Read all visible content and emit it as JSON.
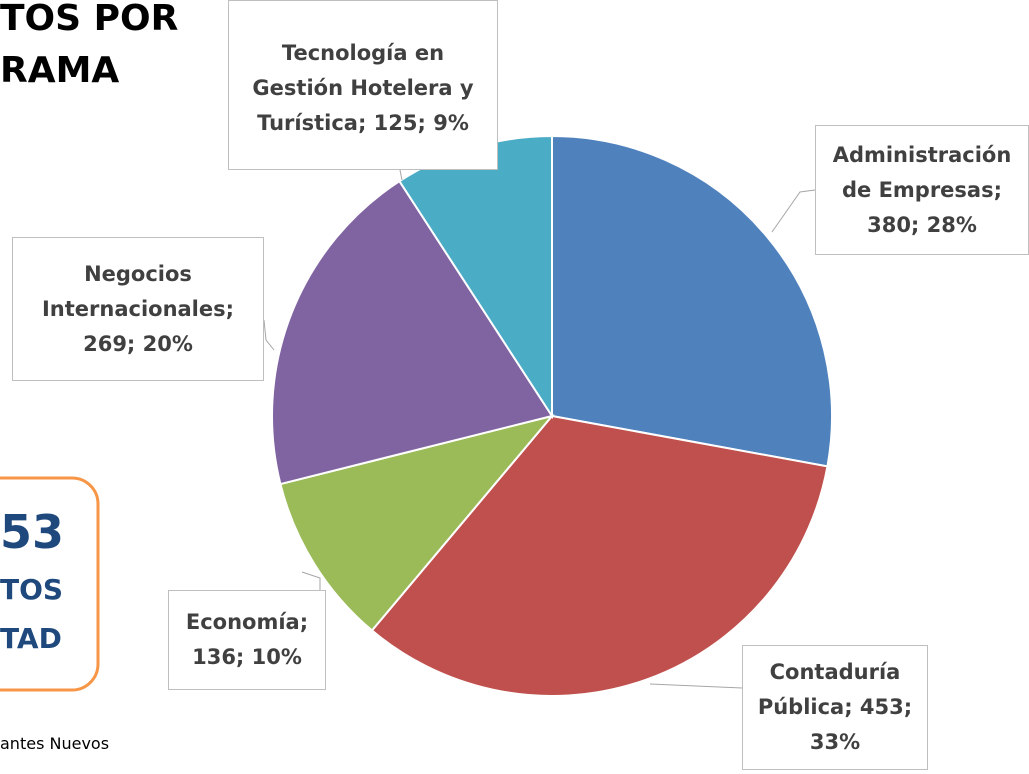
{
  "chart_data": {
    "type": "pie",
    "title_lines": [
      "TOS POR",
      "RAMA"
    ],
    "values": [
      380,
      453,
      136,
      269,
      125
    ],
    "value_labels": [
      "Administración de Empresas; 380; 28%",
      "Contaduría Pública; 453; 33%",
      "Economía; 136; 10%",
      "Negocios Internacionales; 269; 20%",
      "Tecnología en Gestión Hotelera y Turística; 125; 9%"
    ],
    "colors": [
      "#4f81bd",
      "#c0504d",
      "#9bbb59",
      "#8064a2",
      "#4bacc6"
    ]
  },
  "callout": {
    "number": "53",
    "lines": [
      "TOS",
      "TAD"
    ]
  },
  "footer": "antes Nuevos"
}
